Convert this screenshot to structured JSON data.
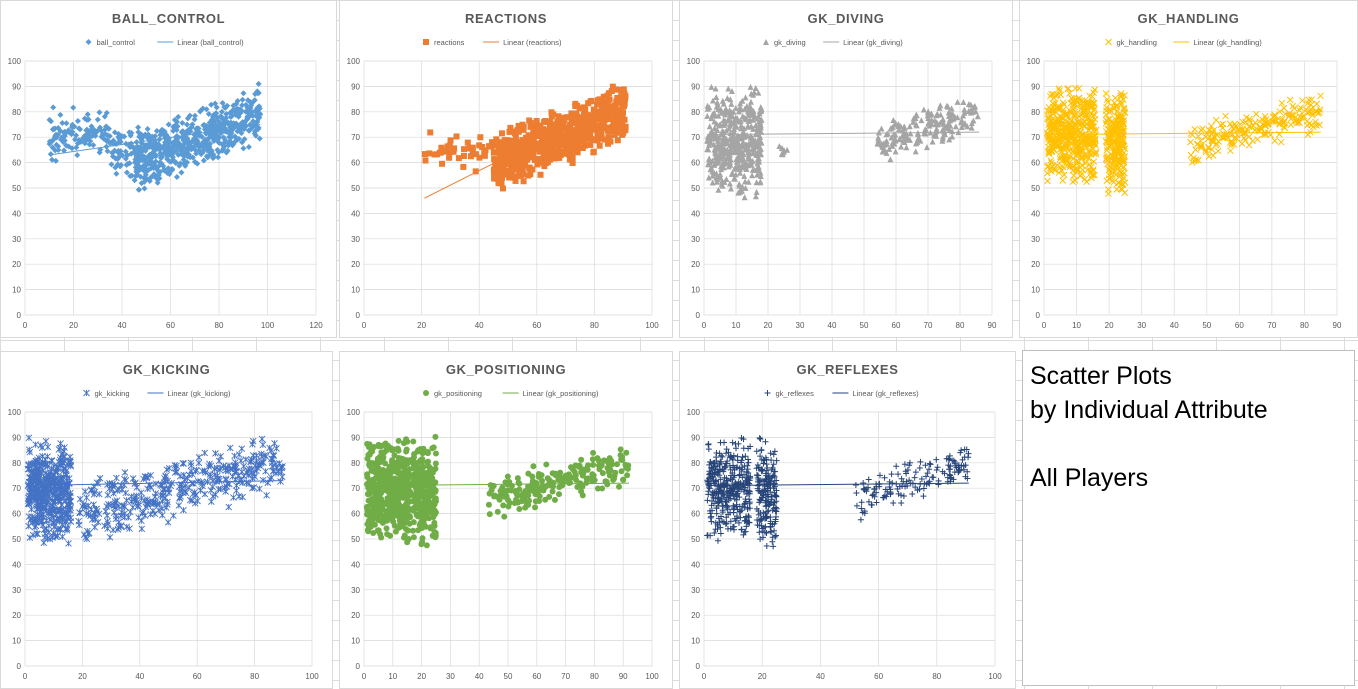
{
  "note": {
    "lines": [
      "Scatter Plots",
      "by Individual Attribute",
      "",
      "All Players"
    ]
  },
  "chart_data": [
    {
      "type": "scatter",
      "title": "BALL_CONTROL",
      "color": "#5b9bd5",
      "marker": "diamond",
      "legend": {
        "position": "top",
        "series_label": "ball_control",
        "trend_label": "Linear (ball_control)"
      },
      "xlim": [
        0,
        120
      ],
      "ylim": [
        0,
        100
      ],
      "xticks": [
        "0",
        "20",
        "40",
        "60",
        "80",
        "100",
        "120"
      ],
      "yticks": [
        "0",
        "10",
        "20",
        "30",
        "40",
        "50",
        "60",
        "70",
        "80",
        "90",
        "100"
      ],
      "trendline": [
        [
          10,
          63
        ],
        [
          97,
          75
        ]
      ],
      "clusters": [
        {
          "x": [
            10,
            35
          ],
          "y": [
            60,
            82
          ],
          "n": 120
        },
        {
          "x": [
            35,
            50
          ],
          "y": [
            52,
            75
          ],
          "n": 80
        },
        {
          "x": [
            45,
            97
          ],
          "y": [
            46,
            91
          ],
          "n": 600,
          "slope": 0.45
        }
      ]
    },
    {
      "type": "scatter",
      "title": "REACTIONS",
      "color": "#ed7d31",
      "marker": "square",
      "legend": {
        "position": "top",
        "series_label": "reactions",
        "trend_label": "Linear (reactions)"
      },
      "xlim": [
        0,
        100
      ],
      "ylim": [
        0,
        100
      ],
      "xticks": [
        "0",
        "20",
        "40",
        "60",
        "80",
        "100"
      ],
      "yticks": [
        "0",
        "10",
        "20",
        "30",
        "40",
        "50",
        "60",
        "70",
        "80",
        "90",
        "100"
      ],
      "trendline": [
        [
          21,
          46
        ],
        [
          91,
          86
        ]
      ],
      "clusters": [
        {
          "x": [
            20,
            45
          ],
          "y": [
            55,
            73
          ],
          "n": 40
        },
        {
          "x": [
            45,
            91
          ],
          "y": [
            46,
            91
          ],
          "n": 650,
          "slope": 0.6
        }
      ]
    },
    {
      "type": "scatter",
      "title": "GK_DIVING",
      "color": "#a5a5a5",
      "marker": "triangle",
      "legend": {
        "position": "top",
        "series_label": "gk_diving",
        "trend_label": "Linear (gk_diving)"
      },
      "xlim": [
        0,
        90
      ],
      "ylim": [
        0,
        100
      ],
      "xticks": [
        "0",
        "10",
        "20",
        "30",
        "40",
        "50",
        "60",
        "70",
        "80",
        "90"
      ],
      "yticks": [
        "0",
        "10",
        "20",
        "30",
        "40",
        "50",
        "60",
        "70",
        "80",
        "90",
        "100"
      ],
      "trendline": [
        [
          1,
          71
        ],
        [
          86,
          72
        ]
      ],
      "clusters": [
        {
          "x": [
            1,
            18
          ],
          "y": [
            45,
            91
          ],
          "n": 450
        },
        {
          "x": [
            23,
            26
          ],
          "y": [
            62,
            68
          ],
          "n": 8
        },
        {
          "x": [
            54,
            86
          ],
          "y": [
            58,
            88
          ],
          "n": 180,
          "slope": 0.85
        }
      ]
    },
    {
      "type": "scatter",
      "title": "GK_HANDLING",
      "color": "#ffc000",
      "marker": "x",
      "legend": {
        "position": "top",
        "series_label": "gk_handling",
        "trend_label": "Linear (gk_handling)"
      },
      "xlim": [
        0,
        90
      ],
      "ylim": [
        0,
        100
      ],
      "xticks": [
        "0",
        "10",
        "20",
        "30",
        "40",
        "50",
        "60",
        "70",
        "80",
        "90"
      ],
      "yticks": [
        "0",
        "10",
        "20",
        "30",
        "40",
        "50",
        "60",
        "70",
        "80",
        "90",
        "100"
      ],
      "trendline": [
        [
          1,
          71
        ],
        [
          85,
          72
        ]
      ],
      "clusters": [
        {
          "x": [
            1,
            16
          ],
          "y": [
            50,
            91
          ],
          "n": 450
        },
        {
          "x": [
            19,
            25
          ],
          "y": [
            46,
            91
          ],
          "n": 220
        },
        {
          "x": [
            45,
            85
          ],
          "y": [
            57,
            88
          ],
          "n": 200,
          "slope": 0.8
        }
      ]
    },
    {
      "type": "scatter",
      "title": "GK_KICKING",
      "color": "#4472c4",
      "marker": "asterisk",
      "legend": {
        "position": "top",
        "series_label": "gk_kicking",
        "trend_label": "Linear (gk_kicking)"
      },
      "xlim": [
        0,
        100
      ],
      "ylim": [
        0,
        100
      ],
      "xticks": [
        "0",
        "20",
        "40",
        "60",
        "80",
        "100"
      ],
      "yticks": [
        "0",
        "10",
        "20",
        "30",
        "40",
        "50",
        "60",
        "70",
        "80",
        "90",
        "100"
      ],
      "trendline": [
        [
          1,
          71
        ],
        [
          90,
          73
        ]
      ],
      "clusters": [
        {
          "x": [
            1,
            16
          ],
          "y": [
            48,
            90
          ],
          "n": 450
        },
        {
          "x": [
            18,
            90
          ],
          "y": [
            46,
            91
          ],
          "n": 380,
          "slope": 0.4
        }
      ]
    },
    {
      "type": "scatter",
      "title": "GK_POSITIONING",
      "color": "#70ad47",
      "marker": "circle",
      "legend": {
        "position": "top",
        "series_label": "gk_positioning",
        "trend_label": "Linear (gk_positioning)"
      },
      "xlim": [
        0,
        100
      ],
      "ylim": [
        0,
        100
      ],
      "xticks": [
        "0",
        "10",
        "20",
        "30",
        "40",
        "50",
        "60",
        "70",
        "80",
        "90",
        "100"
      ],
      "yticks": [
        "0",
        "10",
        "20",
        "30",
        "40",
        "50",
        "60",
        "70",
        "80",
        "90",
        "100"
      ],
      "trendline": [
        [
          1,
          71
        ],
        [
          92,
          72
        ]
      ],
      "clusters": [
        {
          "x": [
            1,
            16
          ],
          "y": [
            48,
            91
          ],
          "n": 450
        },
        {
          "x": [
            17,
            25
          ],
          "y": [
            46,
            91
          ],
          "n": 220
        },
        {
          "x": [
            43,
            92
          ],
          "y": [
            55,
            88
          ],
          "n": 200,
          "slope": 0.8
        }
      ]
    },
    {
      "type": "scatter",
      "title": "GK_REFLEXES",
      "color": "#264478",
      "marker": "plus",
      "legend": {
        "position": "top",
        "series_label": "gk_reflexes",
        "trend_label": "Linear (gk_reflexes)"
      },
      "xlim": [
        0,
        100
      ],
      "ylim": [
        0,
        100
      ],
      "xticks": [
        "0",
        "20",
        "40",
        "60",
        "80",
        "100"
      ],
      "yticks": [
        "0",
        "10",
        "20",
        "30",
        "40",
        "50",
        "60",
        "70",
        "80",
        "90",
        "100"
      ],
      "trendline": [
        [
          1,
          71
        ],
        [
          91,
          72
        ]
      ],
      "clusters": [
        {
          "x": [
            1,
            16
          ],
          "y": [
            48,
            91
          ],
          "n": 360
        },
        {
          "x": [
            18,
            25
          ],
          "y": [
            46,
            91
          ],
          "n": 180
        },
        {
          "x": [
            52,
            91
          ],
          "y": [
            55,
            88
          ],
          "n": 150,
          "slope": 0.8
        }
      ]
    }
  ]
}
